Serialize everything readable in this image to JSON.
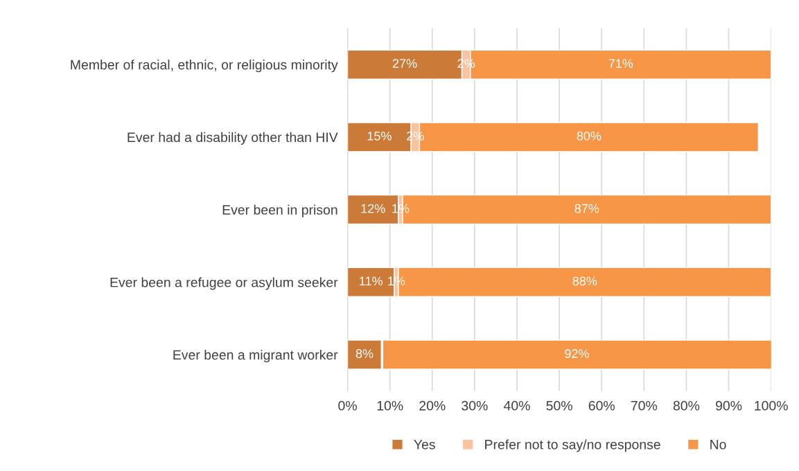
{
  "chart_data": {
    "type": "bar",
    "orientation": "horizontal",
    "stacked": true,
    "categories": [
      "Member of racial, ethnic, or religious minority",
      "Ever had a disability other than HIV",
      "Ever been in prison",
      "Ever been a refugee or asylum seeker",
      "Ever been a migrant worker"
    ],
    "series": [
      {
        "name": "Yes",
        "color": "#cc7a38",
        "values": [
          27,
          15,
          12,
          11,
          8
        ],
        "value_labels": [
          "27%",
          "15%",
          "12%",
          "11%",
          "8%"
        ]
      },
      {
        "name": "Prefer not to say/no response",
        "color": "#f9c3a0",
        "values": [
          2,
          2,
          1,
          1,
          0.3
        ],
        "value_labels": [
          "2%",
          "2%",
          "1%",
          "1%",
          null
        ]
      },
      {
        "name": "No",
        "color": "#f79646",
        "values": [
          71,
          80,
          87,
          88,
          92
        ],
        "value_labels": [
          "71%",
          "80%",
          "87%",
          "88%",
          "92%"
        ]
      }
    ],
    "xlim": [
      0,
      100
    ],
    "xticks": [
      {
        "value": 0,
        "label": "0%"
      },
      {
        "value": 10,
        "label": "10%"
      },
      {
        "value": 20,
        "label": "20%"
      },
      {
        "value": 30,
        "label": "30%"
      },
      {
        "value": 40,
        "label": "40%"
      },
      {
        "value": 50,
        "label": "50%"
      },
      {
        "value": 60,
        "label": "60%"
      },
      {
        "value": 70,
        "label": "70%"
      },
      {
        "value": 80,
        "label": "80%"
      },
      {
        "value": 90,
        "label": "90%"
      },
      {
        "value": 100,
        "label": "100%"
      }
    ],
    "grid": "x",
    "legend": "bottom"
  }
}
